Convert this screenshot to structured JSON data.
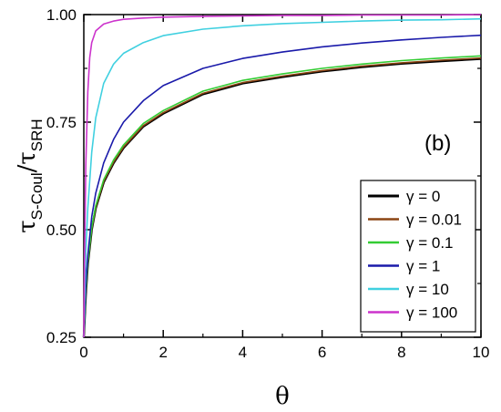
{
  "chart_data": {
    "type": "line",
    "panel_label": "(b)",
    "xlabel": "θ",
    "ylabel_main": "τ",
    "ylabel_sub1": "S-Coul",
    "ylabel_slash": "/τ",
    "ylabel_sub2": "SRH",
    "xlim": [
      0,
      10
    ],
    "ylim": [
      0.25,
      1.0
    ],
    "x_ticks": [
      0,
      2,
      4,
      6,
      8,
      10
    ],
    "x_tick_labels": [
      "0",
      "2",
      "4",
      "6",
      "8",
      "10"
    ],
    "y_ticks": [
      0.25,
      0.5,
      0.75,
      1.0
    ],
    "y_tick_labels": [
      "0.25",
      "0.50",
      "0.75",
      "1.00"
    ],
    "grid": false,
    "legend_position": "bottom-right",
    "series": [
      {
        "name": "γ = 0",
        "color": "#000000",
        "x": [
          0,
          0.05,
          0.1,
          0.2,
          0.3,
          0.5,
          0.75,
          1,
          1.5,
          2,
          3,
          4,
          5,
          6,
          7,
          8,
          9,
          10
        ],
        "y": [
          0.25,
          0.35,
          0.42,
          0.5,
          0.55,
          0.61,
          0.655,
          0.69,
          0.74,
          0.77,
          0.815,
          0.84,
          0.855,
          0.868,
          0.878,
          0.886,
          0.892,
          0.897
        ]
      },
      {
        "name": "γ = 0.01",
        "color": "#8b4513",
        "x": [
          0,
          0.05,
          0.1,
          0.2,
          0.3,
          0.5,
          0.75,
          1,
          1.5,
          2,
          3,
          4,
          5,
          6,
          7,
          8,
          9,
          10
        ],
        "y": [
          0.25,
          0.352,
          0.422,
          0.502,
          0.552,
          0.612,
          0.657,
          0.692,
          0.742,
          0.772,
          0.817,
          0.842,
          0.857,
          0.87,
          0.88,
          0.888,
          0.894,
          0.899
        ]
      },
      {
        "name": "γ = 0.1",
        "color": "#33cc33",
        "x": [
          0,
          0.05,
          0.1,
          0.2,
          0.3,
          0.5,
          0.75,
          1,
          1.5,
          2,
          3,
          4,
          5,
          6,
          7,
          8,
          9,
          10
        ],
        "y": [
          0.25,
          0.355,
          0.425,
          0.505,
          0.556,
          0.616,
          0.662,
          0.697,
          0.747,
          0.777,
          0.822,
          0.847,
          0.862,
          0.875,
          0.885,
          0.893,
          0.899,
          0.904
        ]
      },
      {
        "name": "γ = 1",
        "color": "#1a1aaa",
        "x": [
          0,
          0.05,
          0.1,
          0.2,
          0.3,
          0.5,
          0.75,
          1,
          1.5,
          2,
          3,
          4,
          5,
          6,
          7,
          8,
          9,
          10
        ],
        "y": [
          0.25,
          0.37,
          0.44,
          0.53,
          0.585,
          0.655,
          0.71,
          0.75,
          0.8,
          0.835,
          0.875,
          0.898,
          0.913,
          0.925,
          0.934,
          0.941,
          0.947,
          0.952
        ]
      },
      {
        "name": "γ = 10",
        "color": "#40d0e0",
        "x": [
          0,
          0.05,
          0.1,
          0.2,
          0.3,
          0.5,
          0.75,
          1,
          1.5,
          2,
          3,
          4,
          5,
          6,
          7,
          8,
          9,
          10
        ],
        "y": [
          0.25,
          0.45,
          0.55,
          0.68,
          0.76,
          0.84,
          0.885,
          0.91,
          0.935,
          0.951,
          0.966,
          0.974,
          0.979,
          0.982,
          0.985,
          0.987,
          0.988,
          0.99
        ]
      },
      {
        "name": "γ = 100",
        "color": "#cc33cc",
        "x": [
          0,
          0.02,
          0.05,
          0.1,
          0.15,
          0.2,
          0.3,
          0.5,
          0.75,
          1,
          1.5,
          2,
          3,
          4,
          5,
          6,
          7,
          8,
          9,
          10
        ],
        "y": [
          0.25,
          0.45,
          0.65,
          0.82,
          0.9,
          0.935,
          0.962,
          0.978,
          0.985,
          0.989,
          0.992,
          0.994,
          0.996,
          0.997,
          0.998,
          0.998,
          0.999,
          0.999,
          0.999,
          1.0
        ]
      }
    ]
  }
}
